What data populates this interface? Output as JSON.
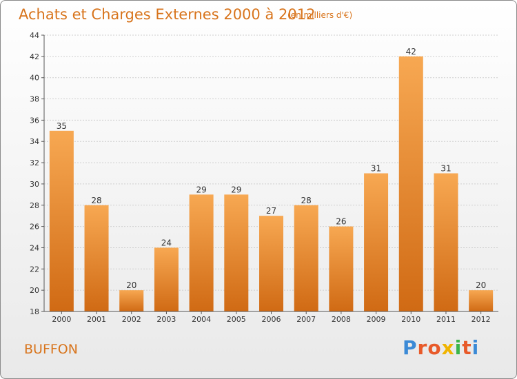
{
  "header": {
    "title": "Achats et Charges Externes 2000 à 2012",
    "unit": "(en milliers d'€)"
  },
  "footer": {
    "commune": "BUFFON",
    "brand": "Proxiti",
    "brand_colors": [
      "#3b8ad6",
      "#e85a2a",
      "#e85a2a",
      "#f0b400",
      "#3bb54a",
      "#e85a2a",
      "#3b8ad6"
    ]
  },
  "colors": {
    "accent": "#d8741c",
    "bar_light": "#f7a852",
    "bar_dark": "#d06a14",
    "grid": "#cfcfcf"
  },
  "chart_data": {
    "type": "bar",
    "categories": [
      "2000",
      "2001",
      "2002",
      "2003",
      "2004",
      "2005",
      "2006",
      "2007",
      "2008",
      "2009",
      "2010",
      "2011",
      "2012"
    ],
    "values": [
      35,
      28,
      20,
      24,
      29,
      29,
      27,
      28,
      26,
      31,
      42,
      31,
      20
    ],
    "title": "Achats et Charges Externes 2000 à 2012",
    "ylim": [
      18,
      44
    ],
    "yticks": [
      18,
      20,
      22,
      24,
      26,
      28,
      30,
      32,
      34,
      36,
      38,
      40,
      42,
      44
    ],
    "grid": true,
    "legend": "none"
  }
}
